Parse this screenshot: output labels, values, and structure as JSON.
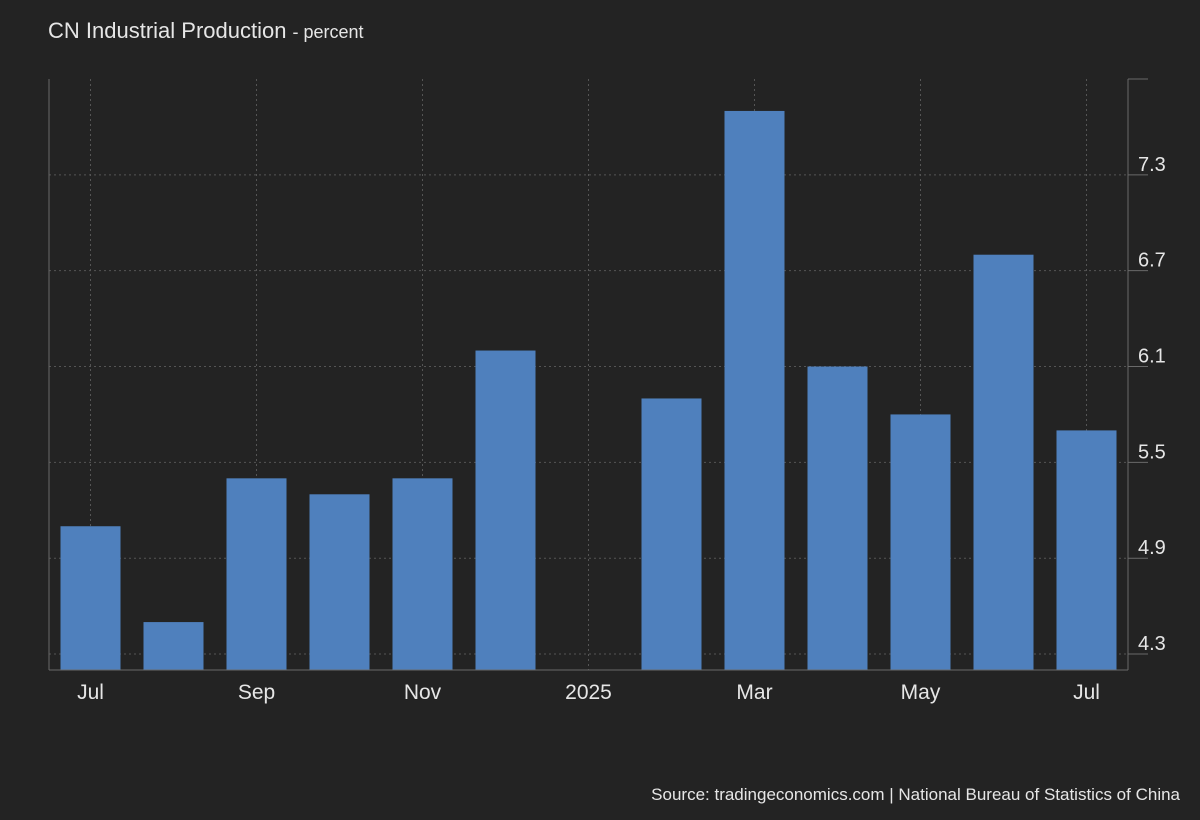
{
  "header": {
    "title": "CN Industrial Production",
    "unit": "- percent"
  },
  "footer": {
    "source": "Source: tradingeconomics.com | National Bureau of Statistics of China"
  },
  "colors": {
    "background": "#232323",
    "bar": "#4f80bd",
    "grid": "#555555",
    "axis": "#6a6a6a",
    "text": "#e6e6e6"
  },
  "chart_data": {
    "type": "bar",
    "title": "CN Industrial Production",
    "ylabel": "percent",
    "xlabel": "",
    "categories": [
      "Jul 2024",
      "Aug 2024",
      "Sep 2024",
      "Oct 2024",
      "Nov 2024",
      "Dec 2024",
      "Jan 2025",
      "Feb 2025",
      "Mar 2025",
      "Apr 2025",
      "May 2025",
      "Jun 2025",
      "Jul 2025"
    ],
    "values": [
      5.1,
      4.5,
      5.4,
      5.3,
      5.4,
      6.2,
      null,
      5.9,
      7.7,
      6.1,
      5.8,
      6.8,
      5.7
    ],
    "ylim": [
      4.2,
      7.9
    ],
    "yticks": [
      4.3,
      4.9,
      5.5,
      6.1,
      6.7,
      7.3
    ],
    "ytick_labels": [
      "4.3",
      "4.9",
      "5.5",
      "6.1",
      "6.7",
      "7.3"
    ],
    "xtick_labels": [
      {
        "label": "Jul",
        "index": 0
      },
      {
        "label": "Sep",
        "index": 2
      },
      {
        "label": "Nov",
        "index": 4
      },
      {
        "label": "2025",
        "index": 6
      },
      {
        "label": "Mar",
        "index": 8
      },
      {
        "label": "May",
        "index": 10
      },
      {
        "label": "Jul",
        "index": 12
      }
    ],
    "grid": true,
    "y_axis_position": "right"
  }
}
